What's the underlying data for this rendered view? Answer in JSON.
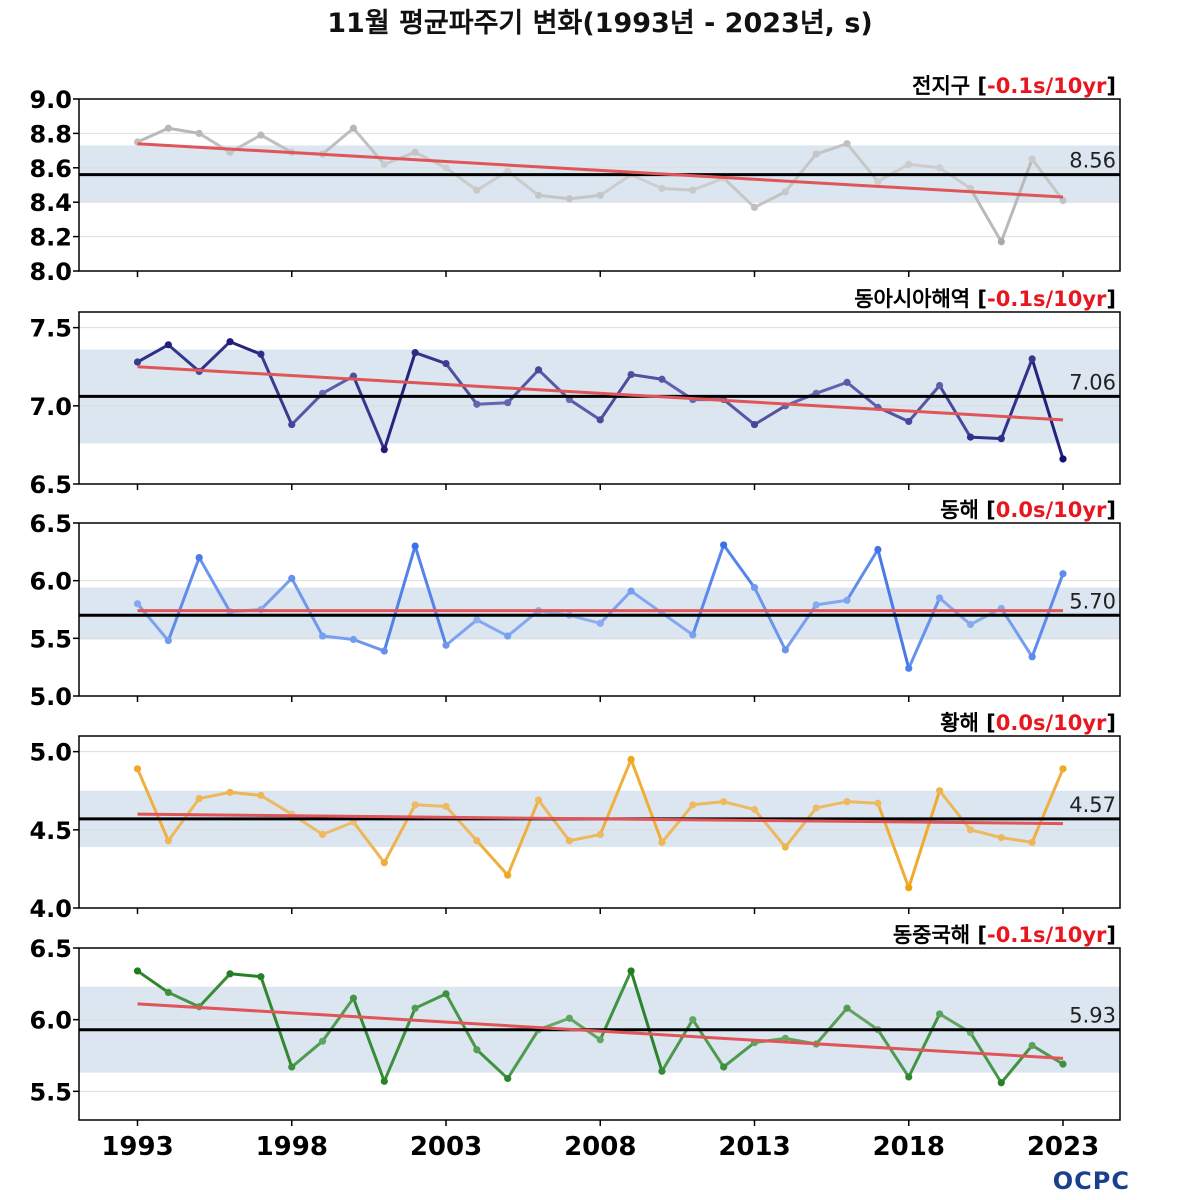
{
  "title": "11월 평균파주기 변화(1993년 - 2023년, s)",
  "logo": "OCPC",
  "colors": {
    "trend": "#e05558",
    "mean": "#000000",
    "band": "#dbe6f1",
    "trend_text": "#e8171f",
    "bracket_text": "#000000"
  },
  "chart_data": {
    "type": "line",
    "x": [
      1993,
      1994,
      1995,
      1996,
      1997,
      1998,
      1999,
      2000,
      2001,
      2002,
      2003,
      2004,
      2005,
      2006,
      2007,
      2008,
      2009,
      2010,
      2011,
      2012,
      2013,
      2014,
      2015,
      2016,
      2017,
      2018,
      2019,
      2020,
      2021,
      2022,
      2023
    ],
    "x_ticks": [
      "1993",
      "1998",
      "2003",
      "2008",
      "2013",
      "2018",
      "2023"
    ],
    "panels": [
      {
        "name": "전지구",
        "trend_text": "-0.1s/10yr",
        "mean": 8.56,
        "mean_label": "8.56",
        "band": [
          8.4,
          8.73
        ],
        "ylim": [
          8.0,
          9.0
        ],
        "yticks": [
          "8.0",
          "8.2",
          "8.4",
          "8.6",
          "8.8",
          "9.0"
        ],
        "color_light": "#d2d2d2",
        "color_dark": "#aaaaaa",
        "trend_line": [
          8.74,
          8.43
        ],
        "values": [
          8.75,
          8.83,
          8.8,
          8.69,
          8.79,
          8.69,
          8.68,
          8.83,
          8.62,
          8.69,
          8.6,
          8.47,
          8.58,
          8.44,
          8.42,
          8.44,
          8.56,
          8.48,
          8.47,
          8.54,
          8.37,
          8.46,
          8.68,
          8.74,
          8.52,
          8.62,
          8.6,
          8.48,
          8.17,
          8.65,
          8.41
        ]
      },
      {
        "name": "동아시아해역",
        "trend_text": "-0.1s/10yr",
        "mean": 7.06,
        "mean_label": "7.06",
        "band": [
          6.76,
          7.36
        ],
        "ylim": [
          6.5,
          7.6
        ],
        "yticks": [
          "6.5",
          "7.0",
          "7.5"
        ],
        "color_light": "#6f6fb8",
        "color_dark": "#101070",
        "trend_line": [
          7.25,
          6.91
        ],
        "values": [
          7.28,
          7.39,
          7.22,
          7.41,
          7.33,
          6.88,
          7.08,
          7.19,
          6.72,
          7.34,
          7.27,
          7.01,
          7.02,
          7.23,
          7.04,
          6.91,
          7.2,
          7.17,
          7.04,
          7.04,
          6.88,
          7.0,
          7.08,
          7.15,
          6.99,
          6.9,
          7.13,
          6.8,
          6.79,
          7.3,
          6.66
        ]
      },
      {
        "name": "동해",
        "trend_text": "0.0s/10yr",
        "mean": 5.7,
        "mean_label": "5.70",
        "band": [
          5.49,
          5.94
        ],
        "ylim": [
          5.0,
          6.5
        ],
        "yticks": [
          "5.0",
          "5.5",
          "6.0",
          "6.5"
        ],
        "color_light": "#93b4f2",
        "color_dark": "#3a6fe8",
        "trend_line": [
          5.74,
          5.74
        ],
        "values": [
          5.8,
          5.48,
          6.2,
          5.73,
          5.75,
          6.02,
          5.52,
          5.49,
          5.39,
          6.3,
          5.44,
          5.66,
          5.52,
          5.74,
          5.7,
          5.63,
          5.91,
          5.72,
          5.53,
          6.31,
          5.94,
          5.4,
          5.79,
          5.83,
          6.27,
          5.24,
          5.85,
          5.62,
          5.76,
          5.34,
          6.06
        ]
      },
      {
        "name": "황해",
        "trend_text": "0.0s/10yr",
        "mean": 4.57,
        "mean_label": "4.57",
        "band": [
          4.39,
          4.75
        ],
        "ylim": [
          4.0,
          5.1
        ],
        "yticks": [
          "4.0",
          "4.5",
          "5.0"
        ],
        "color_light": "#ecc07a",
        "color_dark": "#f2a20c",
        "trend_line": [
          4.6,
          4.54
        ],
        "values": [
          4.89,
          4.43,
          4.7,
          4.74,
          4.72,
          4.6,
          4.47,
          4.55,
          4.29,
          4.66,
          4.65,
          4.43,
          4.21,
          4.69,
          4.43,
          4.47,
          4.95,
          4.42,
          4.66,
          4.68,
          4.63,
          4.39,
          4.64,
          4.68,
          4.67,
          4.13,
          4.75,
          4.5,
          4.45,
          4.42,
          4.89
        ]
      },
      {
        "name": "동중국해",
        "trend_text": "-0.1s/10yr",
        "mean": 5.93,
        "mean_label": "5.93",
        "band": [
          5.63,
          6.23
        ],
        "ylim": [
          5.3,
          6.5
        ],
        "yticks": [
          "5.5",
          "6.0",
          "6.5"
        ],
        "color_light": "#6fae6f",
        "color_dark": "#1f7d1f",
        "trend_line": [
          6.11,
          5.73
        ],
        "values": [
          6.34,
          6.19,
          6.09,
          6.32,
          6.3,
          5.67,
          5.85,
          6.15,
          5.57,
          6.08,
          6.18,
          5.79,
          5.59,
          5.93,
          6.01,
          5.86,
          6.34,
          5.64,
          6.0,
          5.67,
          5.84,
          5.87,
          5.83,
          6.08,
          5.93,
          5.6,
          6.04,
          5.91,
          5.56,
          5.82,
          5.69
        ]
      }
    ]
  }
}
